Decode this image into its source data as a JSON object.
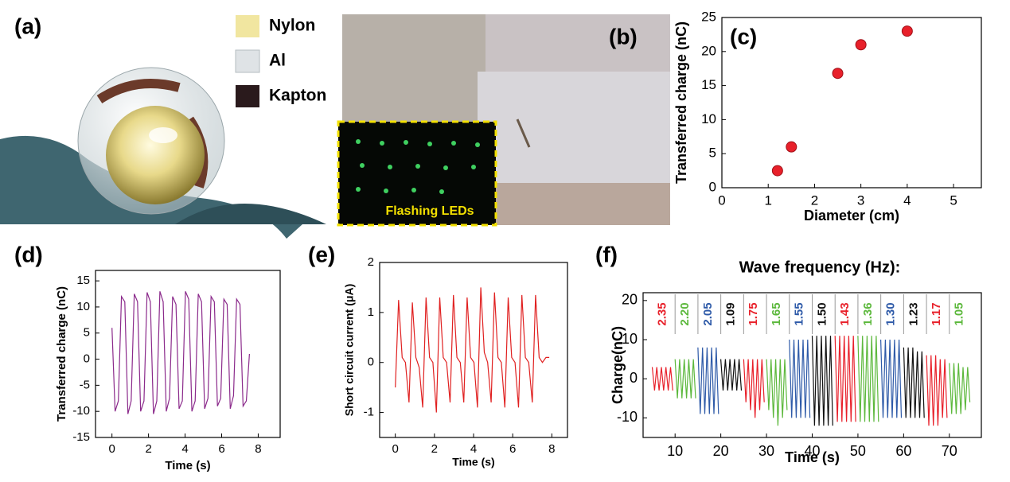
{
  "panel_labels": [
    "(a)",
    "(b)",
    "(c)",
    "(d)",
    "(e)",
    "(f)"
  ],
  "legend_a": [
    "Nylon",
    "Al",
    "Kapton"
  ],
  "inset_label": "Flashing LEDs",
  "chart_data": [
    {
      "type": "scatter",
      "xlabel": "Diameter (cm)",
      "ylabel": "Transferred charge (nC)",
      "x": [
        1.2,
        1.5,
        2.5,
        3,
        4
      ],
      "values": [
        2.5,
        6,
        16.8,
        21,
        23
      ],
      "color": "#e8202a",
      "xlim": [
        0,
        5.6
      ],
      "xticks": [
        0,
        1,
        2,
        3,
        4,
        5
      ],
      "ylim": [
        0,
        25
      ],
      "yticks": [
        0,
        5,
        10,
        15,
        20,
        25
      ]
    },
    {
      "type": "line",
      "xlabel": "Time  (s)",
      "ylabel": "Transferred charge (nC)",
      "color": "#8b2a8b",
      "x": [
        0,
        0.17,
        0.35,
        0.52,
        0.7,
        0.87,
        1.05,
        1.22,
        1.4,
        1.57,
        1.75,
        1.92,
        2.1,
        2.27,
        2.45,
        2.62,
        2.8,
        2.97,
        3.15,
        3.32,
        3.5,
        3.67,
        3.85,
        4.02,
        4.2,
        4.37,
        4.55,
        4.72,
        4.9,
        5.07,
        5.25,
        5.42,
        5.6,
        5.77,
        5.95,
        6.12,
        6.3,
        6.47,
        6.65,
        6.82,
        7.0,
        7.17,
        7.35,
        7.52
      ],
      "values": [
        6,
        -10,
        -8,
        12,
        11,
        -10.5,
        -8,
        12.5,
        11,
        -10,
        -8,
        12.8,
        11,
        -10.5,
        -8,
        13,
        11,
        -10,
        -7.5,
        12,
        10.5,
        -9.5,
        -8,
        13,
        11.5,
        -10,
        -8,
        12.5,
        11,
        -9.5,
        -7.5,
        12,
        11,
        -9,
        -7.5,
        11.5,
        10.5,
        -9.5,
        -7,
        11.5,
        10.5,
        -9,
        -8,
        1
      ],
      "xlim": [
        -0.9,
        9.2
      ],
      "xticks": [
        0,
        2,
        4,
        6,
        8
      ],
      "ylim": [
        -15,
        17
      ],
      "yticks": [
        -15,
        -10,
        -5,
        0,
        5,
        10,
        15
      ]
    },
    {
      "type": "line",
      "xlabel": "Time (s)",
      "ylabel": "Short circuit current (μA)",
      "color": "#e02020",
      "x": [
        0,
        0.17,
        0.35,
        0.52,
        0.7,
        0.87,
        1.05,
        1.22,
        1.4,
        1.57,
        1.75,
        1.92,
        2.1,
        2.27,
        2.45,
        2.62,
        2.8,
        2.97,
        3.15,
        3.32,
        3.5,
        3.67,
        3.85,
        4.02,
        4.2,
        4.37,
        4.55,
        4.72,
        4.9,
        5.07,
        5.25,
        5.42,
        5.6,
        5.77,
        5.95,
        6.12,
        6.3,
        6.47,
        6.65,
        6.82,
        7.0,
        7.17,
        7.35,
        7.52,
        7.7,
        7.87
      ],
      "values": [
        -0.5,
        1.25,
        0.1,
        0,
        -0.8,
        1.2,
        0.1,
        -0.1,
        -0.9,
        1.3,
        0.1,
        0,
        -1,
        1.3,
        0.1,
        0,
        -0.8,
        1.35,
        0.1,
        0,
        -0.8,
        1.3,
        0.1,
        0,
        -0.9,
        1.5,
        0.2,
        0,
        -0.8,
        1.4,
        0.1,
        0,
        -0.9,
        1.3,
        0.1,
        0,
        -0.9,
        1.35,
        0.1,
        0,
        -0.8,
        1.35,
        0.1,
        0,
        0.1,
        0.1
      ],
      "xlim": [
        -0.8,
        8.8
      ],
      "xticks": [
        0,
        2,
        4,
        6,
        8
      ],
      "ylim": [
        -1.5,
        2
      ],
      "yticks": [
        -1,
        0,
        1,
        2
      ]
    },
    {
      "type": "line",
      "title": "Wave frequency (Hz):",
      "xlabel": "Time (s)",
      "ylabel": "Charge(nC)",
      "xlim": [
        3,
        77
      ],
      "xticks": [
        10,
        20,
        30,
        40,
        50,
        60,
        70
      ],
      "ylim": [
        -15,
        22
      ],
      "yticks": [
        -10,
        0,
        10,
        20
      ],
      "series": [
        {
          "name": "2.35",
          "color": "#e8202a",
          "x": [
            5,
            5.5,
            6,
            6.5,
            7,
            7.5,
            8,
            8.5,
            9,
            9.5
          ],
          "values": [
            3,
            -3,
            3,
            -3,
            3,
            -3,
            3,
            -3,
            3,
            -3
          ]
        },
        {
          "name": "2.20",
          "color": "#5cb83c",
          "x": [
            10,
            10.5,
            11,
            11.5,
            12,
            12.5,
            13,
            13.5,
            14,
            14.5
          ],
          "values": [
            5,
            -5,
            5,
            -5,
            5,
            -5,
            5,
            -5,
            5,
            -5
          ]
        },
        {
          "name": "2.05",
          "color": "#2e5aa8",
          "x": [
            15,
            15.5,
            16,
            16.5,
            17,
            17.5,
            18,
            18.5,
            19,
            19.5
          ],
          "values": [
            8,
            -9,
            8,
            -9,
            8,
            -9,
            8,
            -9,
            8,
            -9
          ]
        },
        {
          "name": "1.09",
          "color": "#111111",
          "x": [
            20,
            20.5,
            21,
            21.5,
            22,
            22.5,
            23,
            23.5,
            24,
            24.5
          ],
          "values": [
            5,
            -3,
            5,
            -3,
            5,
            -3,
            5,
            -3,
            5,
            -3
          ]
        },
        {
          "name": "1.75",
          "color": "#e8202a",
          "x": [
            25,
            25.5,
            26,
            26.5,
            27,
            27.5,
            28,
            28.5,
            29,
            29.5
          ],
          "values": [
            5,
            -6,
            5,
            -8,
            5,
            -10,
            5,
            -8,
            5,
            -6
          ]
        },
        {
          "name": "1.65",
          "color": "#5cb83c",
          "x": [
            30,
            30.5,
            31,
            31.5,
            32,
            32.5,
            33,
            33.5,
            34,
            34.5
          ],
          "values": [
            5,
            -8,
            5,
            -10,
            5,
            -12,
            5,
            -10,
            5,
            -8
          ]
        },
        {
          "name": "1.55",
          "color": "#2e5aa8",
          "x": [
            35,
            35.5,
            36,
            36.5,
            37,
            37.5,
            38,
            38.5,
            39,
            39.5
          ],
          "values": [
            10,
            -10,
            10,
            -10,
            10,
            -10,
            10,
            -10,
            10,
            -10
          ]
        },
        {
          "name": "1.50",
          "color": "#111111",
          "x": [
            40,
            40.5,
            41,
            41.5,
            42,
            42.5,
            43,
            43.5,
            44,
            44.5
          ],
          "values": [
            11,
            -12,
            11,
            -12,
            11,
            -12,
            11,
            -12,
            11,
            -12
          ]
        },
        {
          "name": "1.43",
          "color": "#e8202a",
          "x": [
            45,
            45.5,
            46,
            46.5,
            47,
            47.5,
            48,
            48.5,
            49,
            49.5
          ],
          "values": [
            11,
            -11,
            11,
            -11,
            11,
            -11,
            11,
            -11,
            11,
            -11
          ]
        },
        {
          "name": "1.36",
          "color": "#5cb83c",
          "x": [
            50,
            50.5,
            51,
            51.5,
            52,
            52.5,
            53,
            53.5,
            54,
            54.5
          ],
          "values": [
            11,
            -11,
            11,
            -11,
            11,
            -11,
            11,
            -11,
            11,
            -11
          ]
        },
        {
          "name": "1.30",
          "color": "#2e5aa8",
          "x": [
            55,
            55.5,
            56,
            56.5,
            57,
            57.5,
            58,
            58.5,
            59,
            59.5
          ],
          "values": [
            10,
            -10,
            10,
            -10,
            10,
            -10,
            10,
            -10,
            10,
            -10
          ]
        },
        {
          "name": "1.23",
          "color": "#111111",
          "x": [
            60,
            60.5,
            61,
            61.5,
            62,
            62.5,
            63,
            63.5,
            64,
            64.5
          ],
          "values": [
            8,
            -10,
            8,
            -10,
            8,
            -10,
            7,
            -10,
            7,
            -10
          ]
        },
        {
          "name": "1.17",
          "color": "#e8202a",
          "x": [
            65,
            65.5,
            66,
            66.5,
            67,
            67.5,
            68,
            68.5,
            69,
            69.5
          ],
          "values": [
            6,
            -12,
            6,
            -12,
            6,
            -12,
            5,
            -10,
            5,
            -10
          ]
        },
        {
          "name": "1.05",
          "color": "#5cb83c",
          "x": [
            70,
            70.5,
            71,
            71.5,
            72,
            72.5,
            73,
            73.5,
            74,
            74.5
          ],
          "values": [
            4,
            -9,
            4,
            -9,
            4,
            -9,
            3,
            -8,
            3,
            -6
          ]
        }
      ]
    }
  ]
}
